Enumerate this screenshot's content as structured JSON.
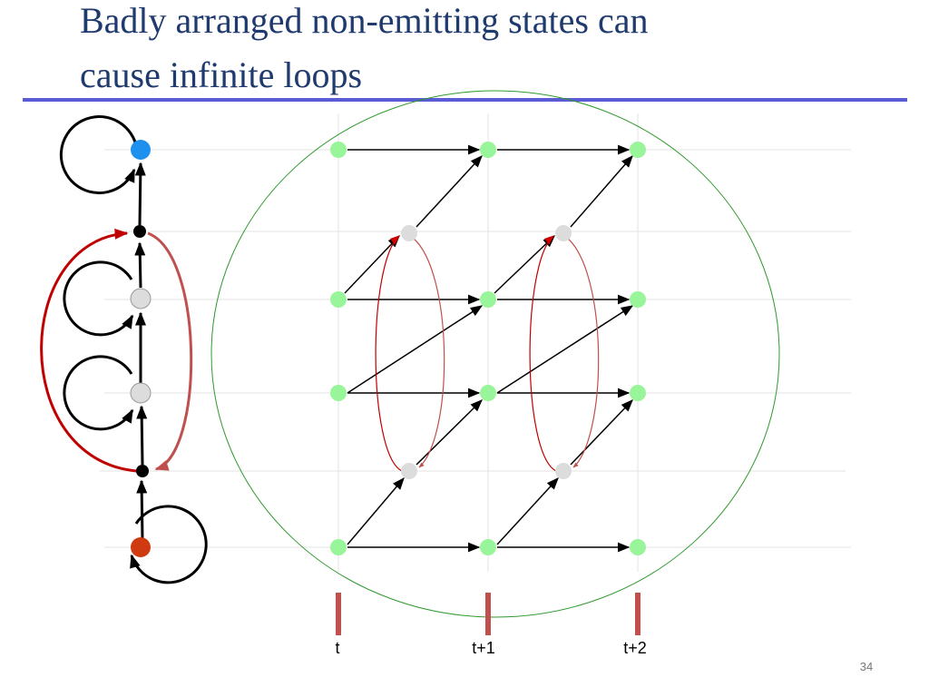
{
  "slide": {
    "title_lines": [
      "Badly arranged non-emitting states can",
      "cause infinite loops"
    ],
    "time_labels": [
      "t",
      "t+1",
      "t+2"
    ],
    "page_number": "34"
  }
}
